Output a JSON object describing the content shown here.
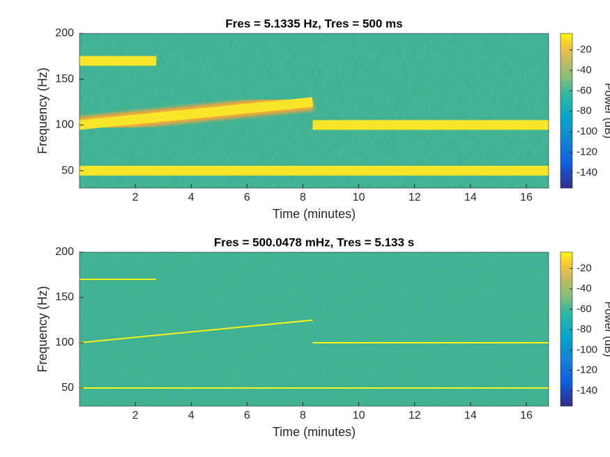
{
  "chart_data": [
    {
      "type": "spectrogram",
      "title": "Fres = 5.1335 Hz, Tres = 500 ms",
      "xlabel": "Time (minutes)",
      "ylabel": "Frequency (Hz)",
      "xlim": [
        0,
        16.8
      ],
      "ylim": [
        31,
        200
      ],
      "xticks": [
        2,
        4,
        6,
        8,
        10,
        12,
        14,
        16
      ],
      "yticks": [
        50,
        100,
        150,
        200
      ],
      "background": "#3aa97f",
      "colorbar": {
        "label": "Power (dB)",
        "lim": [
          -155,
          -4
        ],
        "ticks": [
          -20,
          -40,
          -60,
          -80,
          -100,
          -120,
          -140
        ]
      },
      "series": [
        {
          "color": "#f9e52a",
          "x": [
            0,
            16.8
          ],
          "values": [
            50,
            50
          ]
        },
        {
          "color": "#f9e52a",
          "x": [
            0,
            2.75
          ],
          "values": [
            170,
            170
          ]
        },
        {
          "color": "#f9e52a",
          "x": [
            0,
            8.35
          ],
          "values": [
            100,
            125
          ]
        },
        {
          "color": "#f9e52a",
          "x": [
            8.35,
            16.8
          ],
          "values": [
            100,
            100
          ]
        }
      ]
    },
    {
      "type": "spectrogram",
      "title": "Fres = 500.0478 mHz, Tres = 5.133 s",
      "xlabel": "Time (minutes)",
      "ylabel": "Frequency (Hz)",
      "xlim": [
        0,
        16.8
      ],
      "ylim": [
        30,
        200
      ],
      "xticks": [
        2,
        4,
        6,
        8,
        10,
        12,
        14,
        16
      ],
      "yticks": [
        50,
        100,
        150,
        200
      ],
      "background": "#25a68b",
      "colorbar": {
        "label": "Power (dB)",
        "lim": [
          -155,
          -4
        ],
        "ticks": [
          -20,
          -40,
          -60,
          -80,
          -100,
          -120,
          -140
        ]
      },
      "series": [
        {
          "color": "#f9f020",
          "x": [
            0,
            16.8
          ],
          "values": [
            50,
            50
          ]
        },
        {
          "color": "#f9f020",
          "x": [
            0,
            2.75
          ],
          "values": [
            170,
            170
          ]
        },
        {
          "color": "#f9f020",
          "x": [
            0,
            8.35
          ],
          "values": [
            100,
            125
          ]
        },
        {
          "color": "#f9f020",
          "x": [
            8.35,
            16.8
          ],
          "values": [
            100,
            100
          ]
        }
      ]
    }
  ]
}
